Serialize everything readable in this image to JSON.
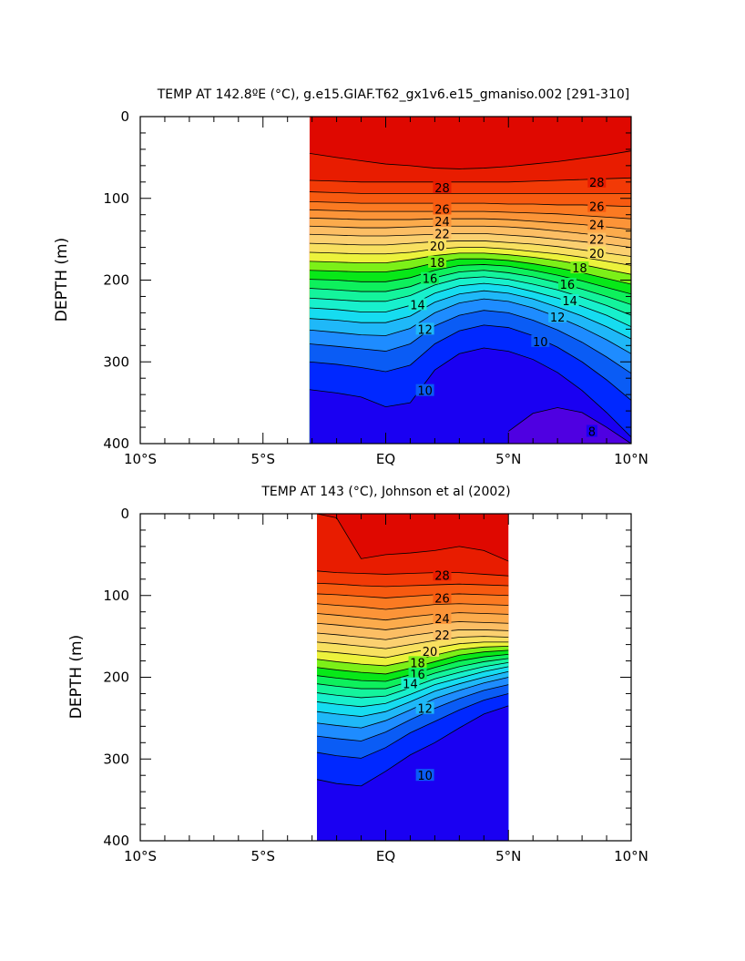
{
  "chart_data": [
    {
      "type": "contour",
      "title": "TEMP AT 142.8ºE (°C), g.e15.GIAF.T62_gx1v6.e15_gmaniso.002 [291-310]",
      "xlabel": "",
      "ylabel": "DEPTH (m)",
      "xlim": [
        -10,
        10
      ],
      "ylim": [
        400,
        0
      ],
      "y_inverted": true,
      "x_ticks": [
        {
          "value": -10,
          "label": "10°S"
        },
        {
          "value": -5,
          "label": "5°S"
        },
        {
          "value": 0,
          "label": "EQ"
        },
        {
          "value": 5,
          "label": "5°N"
        },
        {
          "value": 10,
          "label": "10°N"
        }
      ],
      "y_ticks": [
        {
          "value": 0,
          "label": "0"
        },
        {
          "value": 100,
          "label": "100"
        },
        {
          "value": 200,
          "label": "200"
        },
        {
          "value": 300,
          "label": "300"
        },
        {
          "value": 400,
          "label": "400"
        }
      ],
      "data_lat_range": [
        -3.1,
        10
      ],
      "contour_interval": 1,
      "contour_levels": [
        8,
        9,
        10,
        11,
        12,
        13,
        14,
        15,
        16,
        17,
        18,
        19,
        20,
        21,
        22,
        23,
        24,
        25,
        26,
        27,
        28,
        29,
        30
      ],
      "contour_labels": [
        {
          "value": 28,
          "text": "28",
          "lat": 2.3,
          "depth": 87
        },
        {
          "value": 26,
          "text": "26",
          "lat": 2.3,
          "depth": 113
        },
        {
          "value": 24,
          "text": "24",
          "lat": 2.3,
          "depth": 128
        },
        {
          "value": 22,
          "text": "22",
          "lat": 2.3,
          "depth": 143
        },
        {
          "value": 20,
          "text": "20",
          "lat": 2.1,
          "depth": 158
        },
        {
          "value": 18,
          "text": "18",
          "lat": 2.1,
          "depth": 178
        },
        {
          "value": 16,
          "text": "16",
          "lat": 1.8,
          "depth": 198
        },
        {
          "value": 14,
          "text": "14",
          "lat": 1.3,
          "depth": 230
        },
        {
          "value": 12,
          "text": "12",
          "lat": 1.6,
          "depth": 260
        },
        {
          "value": 10,
          "text": "10",
          "lat": 1.6,
          "depth": 335
        },
        {
          "value": 28,
          "text": "28",
          "lat": 8.6,
          "depth": 80
        },
        {
          "value": 26,
          "text": "26",
          "lat": 8.6,
          "depth": 110
        },
        {
          "value": 24,
          "text": "24",
          "lat": 8.6,
          "depth": 132
        },
        {
          "value": 22,
          "text": "22",
          "lat": 8.6,
          "depth": 150
        },
        {
          "value": 20,
          "text": "20",
          "lat": 8.6,
          "depth": 167
        },
        {
          "value": 18,
          "text": "18",
          "lat": 7.9,
          "depth": 185
        },
        {
          "value": 16,
          "text": "16",
          "lat": 7.4,
          "depth": 205
        },
        {
          "value": 14,
          "text": "14",
          "lat": 7.5,
          "depth": 225
        },
        {
          "value": 12,
          "text": "12",
          "lat": 7.0,
          "depth": 245
        },
        {
          "value": 10,
          "text": "10",
          "lat": 6.3,
          "depth": 275
        },
        {
          "value": 8,
          "text": "8",
          "lat": 8.4,
          "depth": 385
        }
      ],
      "isotherm_depths": {
        "lat": [
          -3.1,
          -2,
          -1,
          0,
          1,
          2,
          3,
          4,
          5,
          6,
          7,
          8,
          9,
          10
        ],
        "levels": [
          {
            "value": 29,
            "depth": [
              45,
              50,
              54,
              58,
              60,
              63,
              64,
              63,
              61,
              58,
              55,
              51,
              47,
              42
            ]
          },
          {
            "value": 28,
            "depth": [
              78,
              79,
              80,
              80,
              80,
              80,
              80,
              80,
              80,
              79,
              78,
              77,
              76,
              75
            ]
          },
          {
            "value": 27,
            "depth": [
              92,
              93,
              94,
              94,
              94,
              94,
              94,
              94,
              94,
              94,
              94,
              94,
              94,
              94
            ]
          },
          {
            "value": 26,
            "depth": [
              104,
              105,
              106,
              106,
              106,
              106,
              106,
              106,
              107,
              107,
              108,
              108,
              109,
              110
            ]
          },
          {
            "value": 25,
            "depth": [
              114,
              115,
              116,
              116,
              116,
              116,
              116,
              116,
              117,
              118,
              119,
              121,
              123,
              125
            ]
          },
          {
            "value": 24,
            "depth": [
              124,
              125,
              126,
              126,
              126,
              125,
              125,
              125,
              126,
              128,
              130,
              132,
              135,
              138
            ]
          },
          {
            "value": 23,
            "depth": [
              134,
              135,
              136,
              136,
              135,
              134,
              134,
              134,
              135,
              137,
              140,
              143,
              146,
              150
            ]
          },
          {
            "value": 22,
            "depth": [
              144,
              145,
              146,
              146,
              145,
              144,
              143,
              143,
              145,
              147,
              150,
              153,
              156,
              160
            ]
          },
          {
            "value": 21,
            "depth": [
              155,
              156,
              157,
              157,
              155,
              153,
              152,
              152,
              154,
              156,
              159,
              163,
              167,
              171
            ]
          },
          {
            "value": 20,
            "depth": [
              166,
              167,
              168,
              168,
              166,
              162,
              160,
              160,
              162,
              165,
              168,
              172,
              177,
              182
            ]
          },
          {
            "value": 19,
            "depth": [
              177,
              178,
              179,
              179,
              175,
              170,
              167,
              167,
              169,
              172,
              176,
              181,
              187,
              193
            ]
          },
          {
            "value": 18,
            "depth": [
              188,
              189,
              190,
              190,
              186,
              179,
              174,
              174,
              176,
              180,
              185,
              191,
              198,
              205
            ]
          },
          {
            "value": 17,
            "depth": [
              199,
              200,
              202,
              202,
              197,
              188,
              182,
              181,
              183,
              188,
              194,
              201,
              209,
              217
            ]
          },
          {
            "value": 16,
            "depth": [
              210,
              212,
              214,
              214,
              208,
              197,
              190,
              188,
              191,
              196,
              203,
              211,
              220,
              230
            ]
          },
          {
            "value": 15,
            "depth": [
              222,
              224,
              226,
              226,
              219,
              206,
              198,
              196,
              199,
              205,
              212,
              221,
              231,
              243
            ]
          },
          {
            "value": 14,
            "depth": [
              234,
              236,
              239,
              239,
              231,
              216,
              207,
              204,
              207,
              214,
              222,
              232,
              243,
              257
            ]
          },
          {
            "value": 13,
            "depth": [
              247,
              249,
              252,
              252,
              244,
              227,
              217,
              213,
              216,
              223,
              233,
              244,
              257,
              272
            ]
          },
          {
            "value": 12,
            "depth": [
              261,
              264,
              267,
              268,
              259,
              240,
              228,
              223,
              226,
              234,
              245,
              258,
              273,
              290
            ]
          },
          {
            "value": 11,
            "depth": [
              278,
              281,
              284,
              287,
              278,
              256,
              243,
              237,
              240,
              249,
              261,
              276,
              294,
              314
            ]
          },
          {
            "value": 10,
            "depth": [
              300,
              303,
              307,
              312,
              304,
              278,
              262,
              255,
              258,
              268,
              282,
              300,
              322,
              347
            ]
          },
          {
            "value": 9,
            "depth": [
              334,
              338,
              343,
              355,
              350,
              310,
              290,
              283,
              287,
              297,
              313,
              335,
              362,
              392
            ]
          },
          {
            "value": 8,
            "depth": [
              null,
              null,
              null,
              null,
              null,
              null,
              null,
              null,
              385,
              363,
              356,
              362,
              380,
              400
            ]
          }
        ]
      }
    },
    {
      "type": "contour",
      "title": "TEMP AT 143 (°C), Johnson et al (2002)",
      "xlabel": "",
      "ylabel": "DEPTH (m)",
      "xlim": [
        -10,
        10
      ],
      "ylim": [
        400,
        0
      ],
      "y_inverted": true,
      "x_ticks": [
        {
          "value": -10,
          "label": "10°S"
        },
        {
          "value": -5,
          "label": "5°S"
        },
        {
          "value": 0,
          "label": "EQ"
        },
        {
          "value": 5,
          "label": "5°N"
        },
        {
          "value": 10,
          "label": "10°N"
        }
      ],
      "y_ticks": [
        {
          "value": 0,
          "label": "0"
        },
        {
          "value": 100,
          "label": "100"
        },
        {
          "value": 200,
          "label": "200"
        },
        {
          "value": 300,
          "label": "300"
        },
        {
          "value": 400,
          "label": "400"
        }
      ],
      "data_lat_range": [
        -2.8,
        5
      ],
      "contour_interval": 1,
      "contour_levels": [
        9,
        10,
        11,
        12,
        13,
        14,
        15,
        16,
        17,
        18,
        19,
        20,
        21,
        22,
        23,
        24,
        25,
        26,
        27,
        28,
        29,
        30
      ],
      "contour_labels": [
        {
          "value": 28,
          "text": "28",
          "lat": 2.3,
          "depth": 75
        },
        {
          "value": 26,
          "text": "26",
          "lat": 2.3,
          "depth": 103
        },
        {
          "value": 24,
          "text": "24",
          "lat": 2.3,
          "depth": 128
        },
        {
          "value": 22,
          "text": "22",
          "lat": 2.3,
          "depth": 148
        },
        {
          "value": 20,
          "text": "20",
          "lat": 1.8,
          "depth": 168
        },
        {
          "value": 18,
          "text": "18",
          "lat": 1.3,
          "depth": 182
        },
        {
          "value": 16,
          "text": "16",
          "lat": 1.3,
          "depth": 196
        },
        {
          "value": 14,
          "text": "14",
          "lat": 1.0,
          "depth": 208
        },
        {
          "value": 12,
          "text": "12",
          "lat": 1.6,
          "depth": 238
        },
        {
          "value": 10,
          "text": "10",
          "lat": 1.6,
          "depth": 320
        }
      ],
      "isotherm_depths": {
        "lat": [
          -2.8,
          -2,
          -1,
          0,
          1,
          2,
          3,
          4,
          5
        ],
        "levels": [
          {
            "value": 29,
            "depth": [
              0,
              5,
              55,
              50,
              48,
              45,
              40,
              45,
              58
            ]
          },
          {
            "value": 28,
            "depth": [
              70,
              72,
              73,
              74,
              73,
              72,
              72,
              74,
              76
            ]
          },
          {
            "value": 27,
            "depth": [
              85,
              86,
              88,
              89,
              88,
              87,
              86,
              87,
              88
            ]
          },
          {
            "value": 26,
            "depth": [
              98,
              99,
              101,
              103,
              101,
              99,
              98,
              99,
              100
            ]
          },
          {
            "value": 25,
            "depth": [
              110,
              112,
              114,
              117,
              114,
              111,
              110,
              111,
              112
            ]
          },
          {
            "value": 24,
            "depth": [
              122,
              124,
              127,
              130,
              126,
              123,
              121,
              122,
              123
            ]
          },
          {
            "value": 23,
            "depth": [
              134,
              136,
              139,
              142,
              138,
              134,
              132,
              133,
              134
            ]
          },
          {
            "value": 22,
            "depth": [
              146,
              148,
              151,
              154,
              149,
              145,
              142,
              142,
              143
            ]
          },
          {
            "value": 21,
            "depth": [
              157,
              159,
              162,
              165,
              160,
              155,
              151,
              150,
              151
            ]
          },
          {
            "value": 20,
            "depth": [
              168,
              170,
              173,
              176,
              170,
              164,
              159,
              157,
              157
            ]
          },
          {
            "value": 19,
            "depth": [
              178,
              181,
              184,
              186,
              180,
              173,
              166,
              163,
              162
            ]
          },
          {
            "value": 18,
            "depth": [
              188,
              191,
              194,
              196,
              189,
              181,
              173,
              169,
              167
            ]
          },
          {
            "value": 17,
            "depth": [
              198,
              201,
              204,
              205,
              197,
              188,
              180,
              175,
              172
            ]
          },
          {
            "value": 16,
            "depth": [
              208,
              211,
              214,
              214,
              205,
              195,
              187,
              181,
              177
            ]
          },
          {
            "value": 15,
            "depth": [
              219,
              222,
              225,
              223,
              213,
              202,
              194,
              187,
              182
            ]
          },
          {
            "value": 14,
            "depth": [
              230,
              233,
              236,
              232,
              221,
              209,
              201,
              193,
              187
            ]
          },
          {
            "value": 13,
            "depth": [
              242,
              245,
              248,
              242,
              230,
              217,
              208,
              200,
              193
            ]
          },
          {
            "value": 12,
            "depth": [
              256,
              259,
              262,
              253,
              240,
              226,
              216,
              207,
              200
            ]
          },
          {
            "value": 11,
            "depth": [
              272,
              275,
              278,
              267,
              252,
              238,
              226,
              216,
              209
            ]
          },
          {
            "value": 10,
            "depth": [
              292,
              296,
              299,
              286,
              268,
              254,
              240,
              228,
              220
            ]
          },
          {
            "value": 9,
            "depth": [
              325,
              330,
              333,
              315,
              295,
              280,
              262,
              245,
              235
            ]
          }
        ]
      }
    }
  ]
}
